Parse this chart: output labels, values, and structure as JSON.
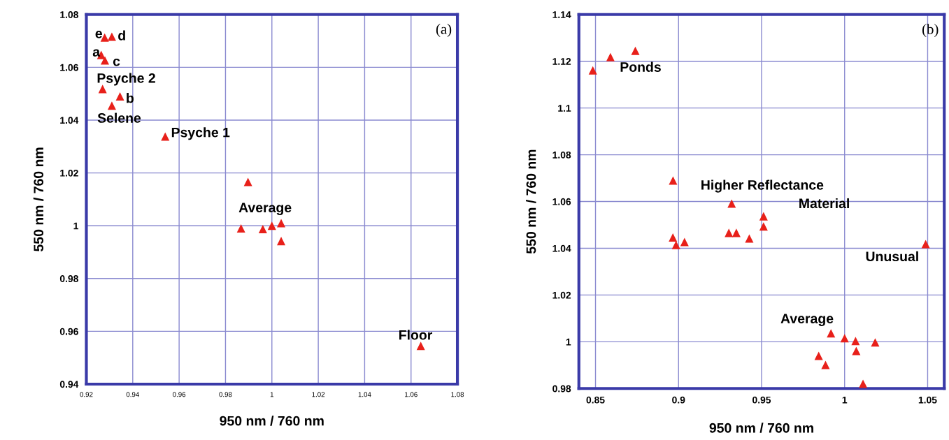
{
  "chart_data": [
    {
      "type": "scatter",
      "xlabel": "950 nm / 760 nm",
      "ylabel": "550 nm / 760 nm",
      "xlim": [
        0.92,
        1.08
      ],
      "ylim": [
        0.94,
        1.08
      ],
      "xticks": [
        0.92,
        0.94,
        0.96,
        0.98,
        {
          "value": 1,
          "label": "1"
        },
        1.02,
        1.04,
        1.06,
        1.08
      ],
      "yticks": [
        0.94,
        0.96,
        0.98,
        {
          "value": 1,
          "label": "1"
        },
        1.02,
        1.04,
        1.06,
        1.08
      ],
      "grid": true,
      "marker": "triangle",
      "series": [
        {
          "color": "#e8201a",
          "x": [
            0.9279,
            0.931,
            0.9264,
            0.928,
            0.927,
            0.9345,
            0.931,
            0.954,
            0.9897,
            0.9867,
            0.9961,
            1.0,
            1.004,
            1.004,
            1.0642
          ],
          "values": [
            1.0713,
            1.0716,
            1.0647,
            1.0626,
            1.0518,
            1.049,
            1.0455,
            1.0338,
            1.0166,
            0.999,
            0.9987,
            1.0,
            1.001,
            0.9942,
            0.9545
          ]
        }
      ],
      "annotations": [
        "(a)",
        {
          "text": "e",
          "x": 0.9279,
          "y": 1.0713
        },
        {
          "text": "d",
          "x": 0.931,
          "y": 1.0716
        },
        {
          "text": "a",
          "x": 0.9264,
          "y": 1.0647
        },
        {
          "text": "c",
          "x": 0.928,
          "y": 1.0626
        },
        {
          "text": "Psyche 2",
          "x": 0.927,
          "y": 1.0518
        },
        {
          "text": "b",
          "x": 0.9345,
          "y": 1.049
        },
        {
          "text": "Selene",
          "x": 0.931,
          "y": 1.0455
        },
        {
          "text": "Psyche 1",
          "x": 0.954,
          "y": 1.0338
        },
        {
          "text": "Average",
          "x": 0.9961,
          "y": 0.9987
        },
        {
          "text": "Floor",
          "x": 1.0642,
          "y": 0.9545
        }
      ]
    },
    {
      "type": "scatter",
      "xlabel": "950 nm / 760 nm",
      "ylabel": "550 nm / 760 nm",
      "xlim": [
        0.84,
        1.06
      ],
      "ylim": [
        0.98,
        1.14
      ],
      "xticks": [
        0.85,
        0.9,
        0.95,
        {
          "value": 1,
          "label": "1"
        },
        1.05
      ],
      "yticks": [
        0.98,
        {
          "value": 1,
          "label": "1"
        },
        1.02,
        1.04,
        1.06,
        1.08,
        1.1,
        1.12,
        1.14
      ],
      "grid": true,
      "marker": "triangle",
      "series": [
        {
          "color": "#e8201a",
          "x": [
            0.8484,
            0.859,
            0.874,
            0.8967,
            0.8966,
            0.8985,
            0.9036,
            0.932,
            0.9512,
            0.9512,
            0.9303,
            0.9348,
            0.9426,
            1.0488,
            0.9918,
            1.0,
            1.0066,
            1.0184,
            1.007,
            0.9844,
            0.9885,
            1.0111
          ],
          "values": [
            1.1161,
            1.1218,
            1.1245,
            1.069,
            1.0446,
            1.0414,
            1.0427,
            1.0591,
            1.0537,
            1.0493,
            1.0466,
            1.0466,
            1.0442,
            1.0418,
            1.0036,
            1.0015,
            1.0003,
            0.9997,
            0.9961,
            0.994,
            0.9901,
            0.982
          ]
        }
      ],
      "annotations": [
        "(b)",
        {
          "text": "Ponds",
          "x": 0.874,
          "y": 1.1245
        },
        {
          "text": "Higher Reflectance",
          "x": 0.932,
          "y": 1.0591
        },
        {
          "text": "Material",
          "x": 0.9512,
          "y": 1.0537
        },
        {
          "text": "Unusual",
          "x": 1.0488,
          "y": 1.0418
        },
        {
          "text": "Average",
          "x": 0.9918,
          "y": 1.0036
        }
      ]
    }
  ]
}
